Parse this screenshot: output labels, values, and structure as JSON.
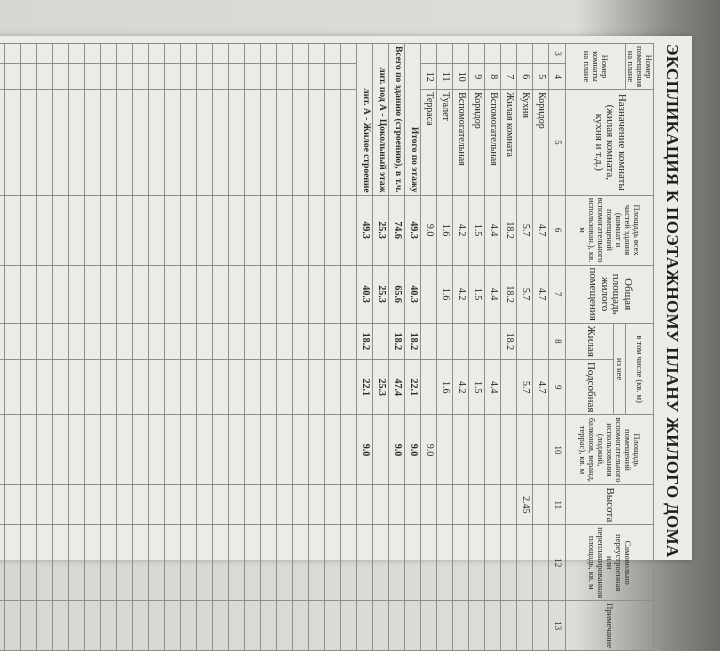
{
  "title": "ЭКСПЛИКАЦИЯ К ПОЭТАЖНОМУ ПЛАНУ ЖИЛОГО ДОМА",
  "headers": {
    "premise_no": "Номер помещения на плане",
    "room_no": "Номер комнаты на плане",
    "purpose": "Назначение комнаты (жилая комната, кухня и т.д.)",
    "total_all": "Площадь всех частей здания (комнат и помещений вспомогательного использован.), кв. м",
    "total_living": "Общая площадь жилого помещения",
    "incl": "в том числе (кв. м)",
    "of_which": "из нее",
    "living": "Жилая",
    "auxiliary": "Подсобная",
    "aux_use": "Площадь помещений вспомогательного использования (лоджий, балконов, веранд, террас), кв. м",
    "height": "Высота",
    "unauthorized": "Самовольно переустроенная или перепланированная площадь, кв. м",
    "note": "Примечание"
  },
  "column_numbers": [
    "3",
    "4",
    "5",
    "6",
    "7",
    "8",
    "9",
    "10",
    "11",
    "12",
    "13"
  ],
  "rows": [
    [
      "",
      "5",
      "Коридор",
      "4.7",
      "4.7",
      "",
      "4.7",
      "",
      "",
      "",
      ""
    ],
    [
      "",
      "6",
      "Кухня",
      "5.7",
      "5.7",
      "",
      "5.7",
      "",
      "2.45",
      "",
      ""
    ],
    [
      "",
      "7",
      "Жилая комната",
      "18.2",
      "18.2",
      "18.2",
      "",
      "",
      "",
      "",
      ""
    ],
    [
      "",
      "8",
      "Вспомогательная",
      "4.4",
      "4.4",
      "",
      "4.4",
      "",
      "",
      "",
      ""
    ],
    [
      "",
      "9",
      "Коридор",
      "1.5",
      "1.5",
      "",
      "1.5",
      "",
      "",
      "",
      ""
    ],
    [
      "",
      "10",
      "Вспомогательная",
      "4.2",
      "4.2",
      "",
      "4.2",
      "",
      "",
      "",
      ""
    ],
    [
      "",
      "11",
      "Туалет",
      "1.6",
      "1.6",
      "",
      "1.6",
      "",
      "",
      "",
      ""
    ],
    [
      "",
      "12",
      "Терраса",
      "9.0",
      "",
      "",
      "",
      "9.0",
      "",
      "",
      ""
    ]
  ],
  "totals": [
    [
      "Итого по этажу",
      "49.3",
      "40.3",
      "18.2",
      "22.1",
      "9.0",
      "",
      "",
      ""
    ],
    [
      "Всего по зданию (строению), в т.ч.",
      "74.6",
      "65.6",
      "18.2",
      "47.4",
      "9.0",
      "",
      "",
      ""
    ],
    [
      "лит. под А - Цокольный этаж",
      "25.3",
      "25.3",
      "",
      "25.3",
      "",
      "",
      "",
      ""
    ],
    [
      "лит. А - Жилое строение",
      "49.3",
      "40.3",
      "18.2",
      "22.1",
      "9.0",
      "",
      "",
      ""
    ]
  ]
}
